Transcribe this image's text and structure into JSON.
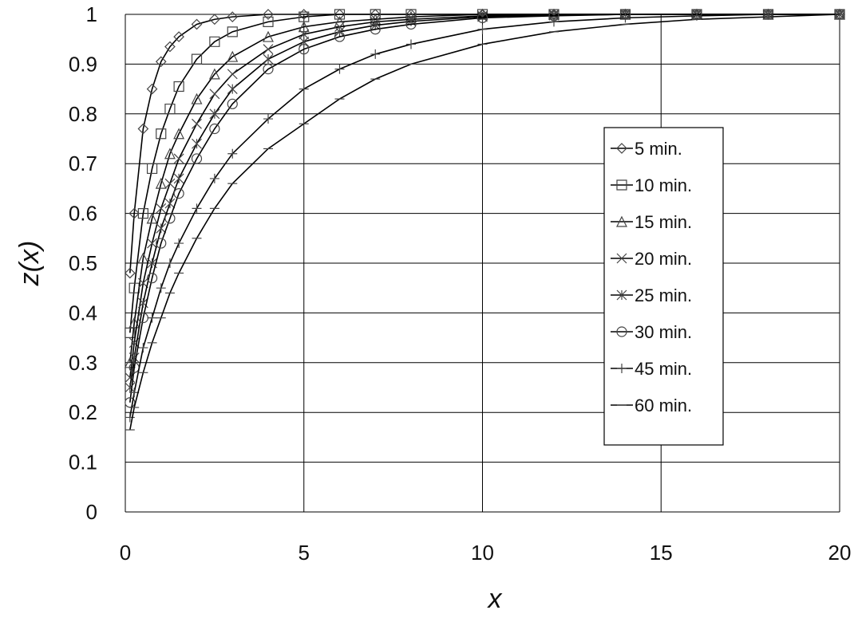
{
  "chart_data": {
    "type": "line",
    "title": "",
    "xlabel": "x",
    "ylabel": "z(x)",
    "xlim": [
      0,
      20
    ],
    "ylim": [
      0,
      1
    ],
    "xticks": [
      0,
      5,
      10,
      15,
      20
    ],
    "yticks": [
      0,
      0.1,
      0.2,
      0.3,
      0.4,
      0.5,
      0.6,
      0.7,
      0.8,
      0.9,
      1
    ],
    "grid": true,
    "legend_position": "right-middle",
    "colors": {
      "line": "#000000",
      "grid": "#000000",
      "marker": "#444444"
    },
    "x": [
      0.13,
      0.25,
      0.5,
      0.75,
      1,
      1.25,
      1.5,
      2,
      2.5,
      3,
      4,
      5,
      6,
      7,
      8,
      10,
      12,
      14,
      16,
      18,
      20
    ],
    "series": [
      {
        "name": "5 min.",
        "marker": "diamond",
        "values": [
          0.48,
          0.6,
          0.77,
          0.85,
          0.905,
          0.935,
          0.955,
          0.98,
          0.99,
          0.995,
          1.0,
          1.0,
          1.0,
          1.0,
          1.0,
          1.0,
          1.0,
          1.0,
          1.0,
          1.0,
          1.0
        ]
      },
      {
        "name": "10 min.",
        "marker": "square",
        "values": [
          0.36,
          0.45,
          0.6,
          0.69,
          0.76,
          0.81,
          0.855,
          0.91,
          0.945,
          0.965,
          0.985,
          0.995,
          1.0,
          1.0,
          1.0,
          1.0,
          1.0,
          1.0,
          1.0,
          1.0,
          1.0
        ]
      },
      {
        "name": "15 min.",
        "marker": "triangle",
        "values": [
          0.3,
          0.38,
          0.51,
          0.59,
          0.66,
          0.72,
          0.76,
          0.83,
          0.88,
          0.915,
          0.955,
          0.975,
          0.985,
          0.99,
          0.995,
          1.0,
          1.0,
          1.0,
          1.0,
          1.0,
          1.0
        ]
      },
      {
        "name": "20 min.",
        "marker": "x",
        "values": [
          0.27,
          0.34,
          0.46,
          0.54,
          0.61,
          0.66,
          0.71,
          0.78,
          0.84,
          0.88,
          0.93,
          0.96,
          0.975,
          0.985,
          0.99,
          0.997,
          1.0,
          1.0,
          1.0,
          1.0,
          1.0
        ]
      },
      {
        "name": "25 min.",
        "marker": "star",
        "values": [
          0.25,
          0.31,
          0.42,
          0.5,
          0.57,
          0.62,
          0.67,
          0.74,
          0.8,
          0.85,
          0.91,
          0.945,
          0.965,
          0.978,
          0.986,
          0.995,
          0.998,
          1.0,
          1.0,
          1.0,
          1.0
        ]
      },
      {
        "name": "30 min.",
        "marker": "circle",
        "values": [
          0.22,
          0.29,
          0.39,
          0.47,
          0.54,
          0.59,
          0.64,
          0.71,
          0.77,
          0.82,
          0.89,
          0.93,
          0.955,
          0.97,
          0.98,
          0.993,
          0.997,
          1.0,
          1.0,
          1.0,
          1.0
        ]
      },
      {
        "name": "45 min.",
        "marker": "plus",
        "values": [
          0.19,
          0.24,
          0.33,
          0.39,
          0.45,
          0.5,
          0.54,
          0.61,
          0.67,
          0.72,
          0.79,
          0.85,
          0.89,
          0.92,
          0.94,
          0.97,
          0.985,
          0.993,
          0.997,
          1.0,
          1.0
        ]
      },
      {
        "name": "60 min.",
        "marker": "dash",
        "values": [
          0.165,
          0.21,
          0.28,
          0.34,
          0.39,
          0.44,
          0.48,
          0.55,
          0.61,
          0.66,
          0.73,
          0.78,
          0.83,
          0.87,
          0.9,
          0.94,
          0.965,
          0.98,
          0.99,
          0.995,
          1.0
        ]
      }
    ]
  }
}
